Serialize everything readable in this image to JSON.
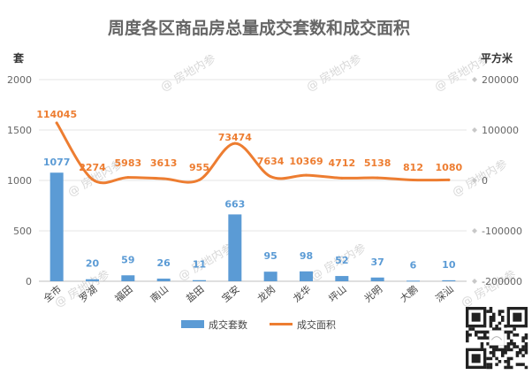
{
  "chart_data": {
    "type": "bar",
    "title": "周度各区商品房总量成交套数和成交面积",
    "y_left_unit": "套",
    "y_right_unit": "平方米",
    "y_left_ticks": [
      "2000",
      "1500",
      "1000",
      "500",
      "0"
    ],
    "y_right_ticks": [
      "200000",
      "100000",
      "0",
      "-100000",
      "-200000"
    ],
    "ylim_left": [
      0,
      2000
    ],
    "ylim_right": [
      -200000,
      200000
    ],
    "categories": [
      "全市",
      "罗湖",
      "福田",
      "南山",
      "盐田",
      "宝安",
      "龙岗",
      "龙华",
      "坪山",
      "光明",
      "大鹏",
      "深汕"
    ],
    "series": [
      {
        "name": "成交套数",
        "type": "bar",
        "axis": "left",
        "color": "#5b9bd5",
        "values": [
          1077,
          20,
          59,
          26,
          11,
          663,
          95,
          98,
          52,
          37,
          6,
          10
        ],
        "labels": [
          "1077",
          "20",
          "59",
          "26",
          "11",
          "663",
          "95",
          "98",
          "52",
          "37",
          "6",
          "10"
        ]
      },
      {
        "name": "成交面积",
        "type": "line",
        "axis": "right",
        "color": "#ed7d31",
        "values": [
          114045,
          2274,
          5983,
          3613,
          955,
          73474,
          7634,
          10369,
          4712,
          5138,
          812,
          1080
        ],
        "labels": [
          "114045",
          "2274",
          "5983",
          "3613",
          "955",
          "73474",
          "7634",
          "10369",
          "4712",
          "5138",
          "812",
          "1080"
        ]
      }
    ],
    "legend": "bottom",
    "grid": true
  },
  "watermark": "房地内参"
}
